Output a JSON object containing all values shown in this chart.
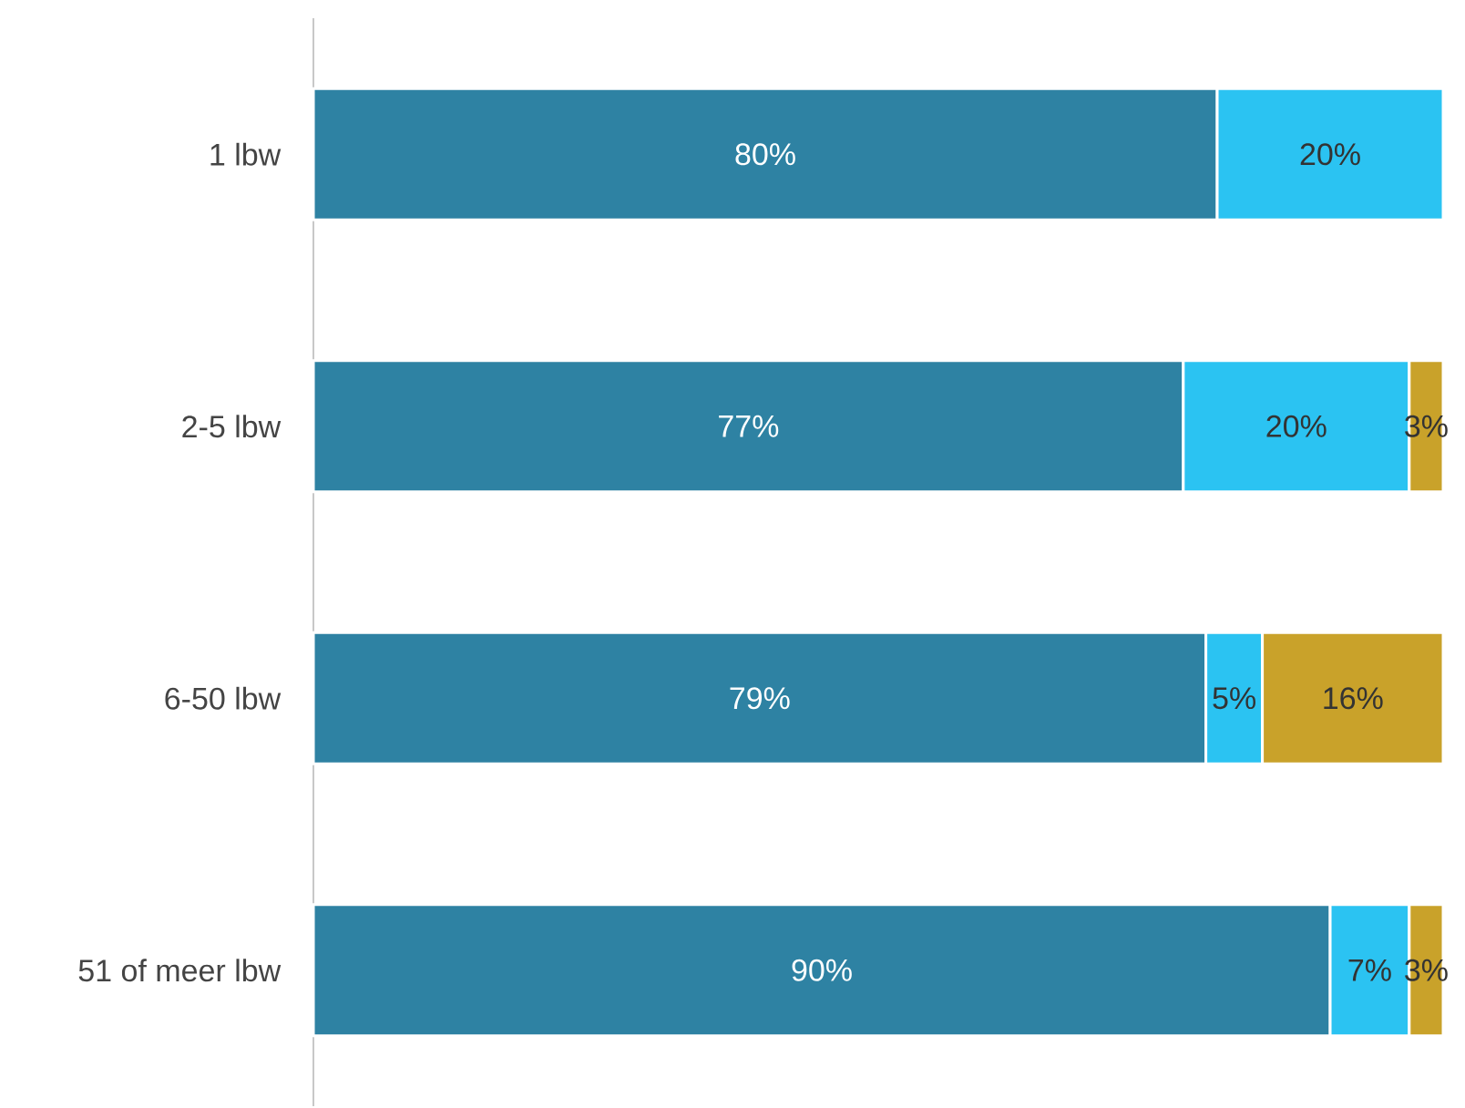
{
  "chart_data": {
    "type": "bar",
    "orientation": "horizontal",
    "stacked": true,
    "categories": [
      "1 lbw",
      "2-5 lbw",
      "6-50 lbw",
      "51 of meer lbw"
    ],
    "tick_labels": "y",
    "series": [
      {
        "color": "#2e82a3",
        "values": [
          80,
          77,
          79,
          90
        ],
        "value_labels": [
          "80%",
          "77%",
          "79%",
          "90%"
        ]
      },
      {
        "color": "#2bc3f2",
        "values": [
          20,
          20,
          5,
          7
        ],
        "value_labels": [
          "20%",
          "20%",
          "5%",
          "7%"
        ]
      },
      {
        "color": "#c9a22a",
        "values": [
          null,
          3,
          16,
          3
        ],
        "value_labels": [
          null,
          "3%",
          "16%",
          "3%"
        ]
      }
    ]
  }
}
